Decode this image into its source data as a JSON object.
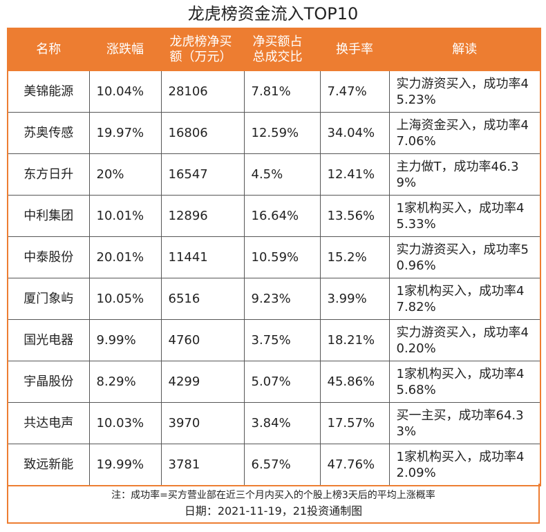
{
  "header": {
    "title": "龙虎榜资金流入TOP10"
  },
  "table": {
    "columns": [
      "名称",
      "涨跌幅",
      "龙虎榜净买额（万元）",
      "净买额占总成交比",
      "换手率",
      "解读"
    ],
    "rows": [
      [
        "美锦能源",
        "10.04%",
        "28106",
        "7.81%",
        "7.47%",
        "实力游资买入，成功率45.23%"
      ],
      [
        "苏奥传感",
        "19.97%",
        "16806",
        "12.59%",
        "34.04%",
        "上海资金买入，成功率47.06%"
      ],
      [
        "东方日升",
        "20%",
        "16547",
        "4.5%",
        "12.41%",
        "主力做T，成功率46.39%"
      ],
      [
        "中利集团",
        "10.01%",
        "12896",
        "16.64%",
        "13.56%",
        "1家机构买入，成功率45.33%"
      ],
      [
        "中泰股份",
        "20.01%",
        "11441",
        "10.59%",
        "15.2%",
        "实力游资买入，成功率50.96%"
      ],
      [
        "厦门象屿",
        "10.05%",
        "6516",
        "9.23%",
        "3.99%",
        "1家机构买入，成功率47.82%"
      ],
      [
        "国光电器",
        "9.99%",
        "4760",
        "3.75%",
        "18.21%",
        "实力游资买入，成功率40.20%"
      ],
      [
        "宇晶股份",
        "8.29%",
        "4299",
        "5.07%",
        "45.86%",
        "1家机构买入，成功率45.68%"
      ],
      [
        "共达电声",
        "10.03%",
        "3970",
        "3.84%",
        "17.57%",
        "买一主买，成功率64.33%"
      ],
      [
        "致远新能",
        "19.99%",
        "3781",
        "6.57%",
        "47.76%",
        "1家机构买入，成功率42.09%"
      ]
    ]
  },
  "footer": {
    "note": "注：成功率=买方营业部在近三个月内买入的个股上榜3天后的平均上涨概率",
    "date": "日期：2021-11-19，21投资通制图"
  }
}
